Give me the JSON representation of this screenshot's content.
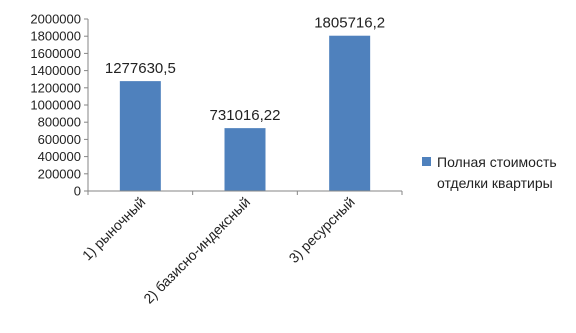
{
  "chart_data": {
    "type": "bar",
    "categories": [
      "1) рыночный",
      "2) базисно-индексный",
      "3) ресурсный"
    ],
    "series": [
      {
        "name": "Полная стоимость отделки квартиры",
        "values": [
          1277630.5,
          731016.22,
          1805716.2
        ]
      }
    ],
    "data_labels": [
      "1277630,5",
      "731016,22",
      "1805716,2"
    ],
    "y_ticks": [
      "0",
      "200000",
      "400000",
      "600000",
      "800000",
      "1000000",
      "1200000",
      "1400000",
      "1600000",
      "1800000",
      "2000000"
    ],
    "ylim": [
      0,
      2000000
    ],
    "grid": false,
    "legend_position": "right",
    "colors": {
      "bar": "#4f81bd",
      "axis": "#868686"
    }
  }
}
